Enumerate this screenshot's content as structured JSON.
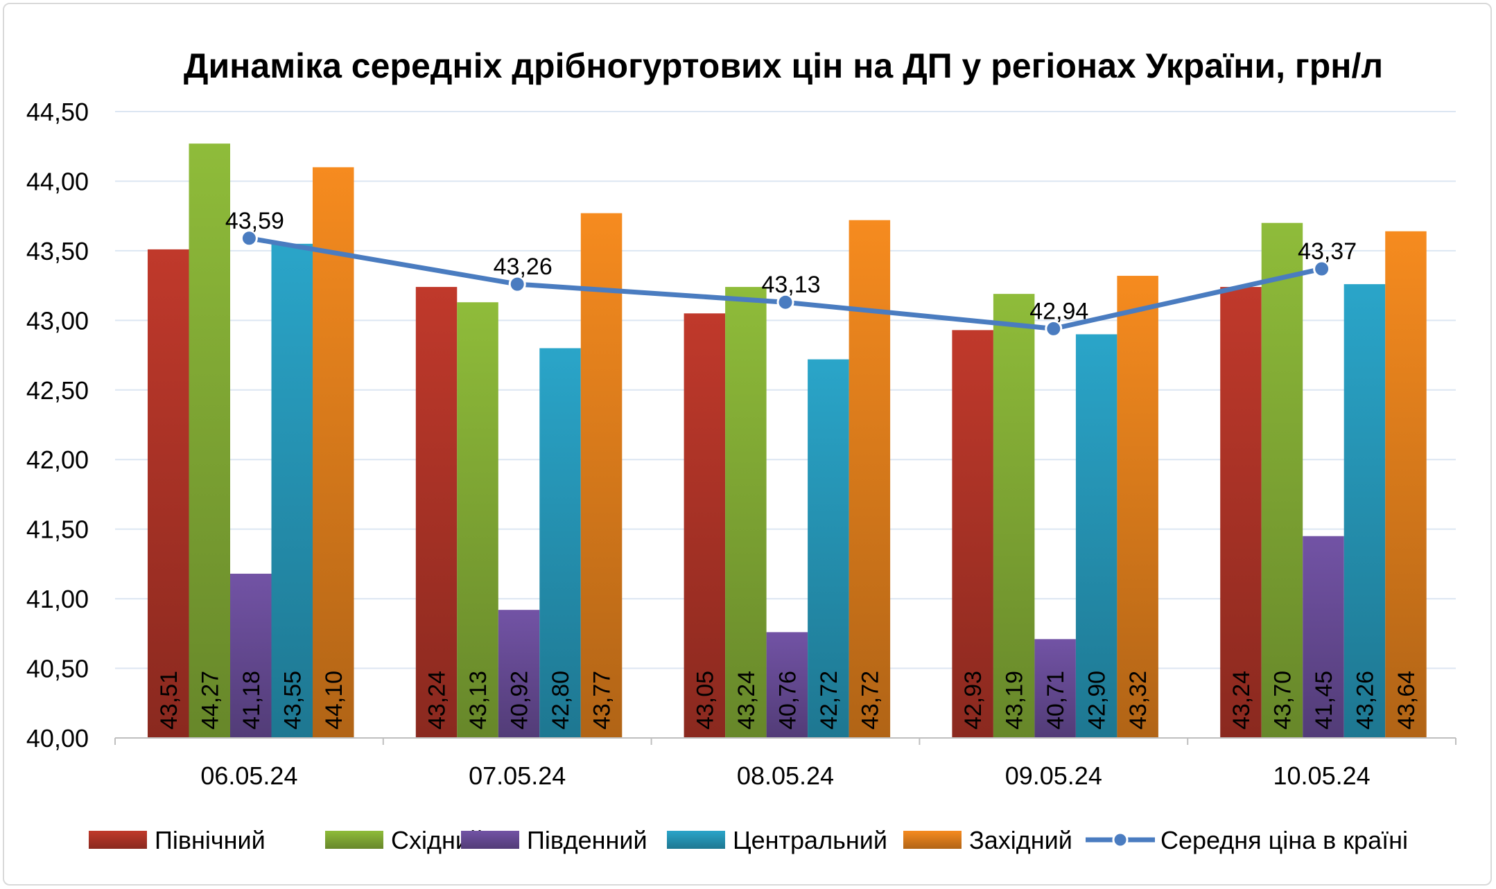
{
  "chart_data": {
    "type": "bar",
    "title": "Динаміка середніх дрібногуртових цін на ДП у регіонах України, грн/л",
    "xlabel": "",
    "ylabel": "",
    "ylim": [
      40.0,
      44.5
    ],
    "y_ticks": [
      "40,00",
      "40,50",
      "41,00",
      "41,50",
      "42,00",
      "42,50",
      "43,00",
      "43,50",
      "44,00",
      "44,50"
    ],
    "categories": [
      "06.05.24",
      "07.05.24",
      "08.05.24",
      "09.05.24",
      "10.05.24"
    ],
    "grid": true,
    "legend_position": "bottom",
    "series": [
      {
        "name": "Північний",
        "color": "#c0392b",
        "values": [
          43.51,
          43.24,
          43.05,
          42.93,
          43.24
        ],
        "labels": [
          "43,51",
          "43,24",
          "43,05",
          "42,93",
          "43,24"
        ]
      },
      {
        "name": "Східний",
        "color": "#8fbc3a",
        "values": [
          44.27,
          43.13,
          43.24,
          43.19,
          43.7
        ],
        "labels": [
          "44,27",
          "43,13",
          "43,24",
          "43,19",
          "43,70"
        ]
      },
      {
        "name": "Південний",
        "color": "#7253a5",
        "values": [
          41.18,
          40.92,
          40.76,
          40.71,
          41.45
        ],
        "labels": [
          "41,18",
          "40,92",
          "40,76",
          "40,71",
          "41,45"
        ]
      },
      {
        "name": "Центральний",
        "color": "#2aa5c9",
        "values": [
          43.55,
          42.8,
          42.72,
          42.9,
          43.26
        ],
        "labels": [
          "43,55",
          "42,80",
          "42,72",
          "42,90",
          "43,26"
        ]
      },
      {
        "name": "Західний",
        "color": "#f68b1f",
        "values": [
          44.1,
          43.77,
          43.72,
          43.32,
          43.64
        ],
        "labels": [
          "44,10",
          "43,77",
          "43,72",
          "43,32",
          "43,64"
        ]
      }
    ],
    "line_series": {
      "name": "Середня ціна в країні",
      "color": "#4a7cc0",
      "values": [
        43.59,
        43.26,
        43.13,
        42.94,
        43.37
      ],
      "labels": [
        "43,59",
        "43,26",
        "43,13",
        "42,94",
        "43,37"
      ]
    }
  }
}
